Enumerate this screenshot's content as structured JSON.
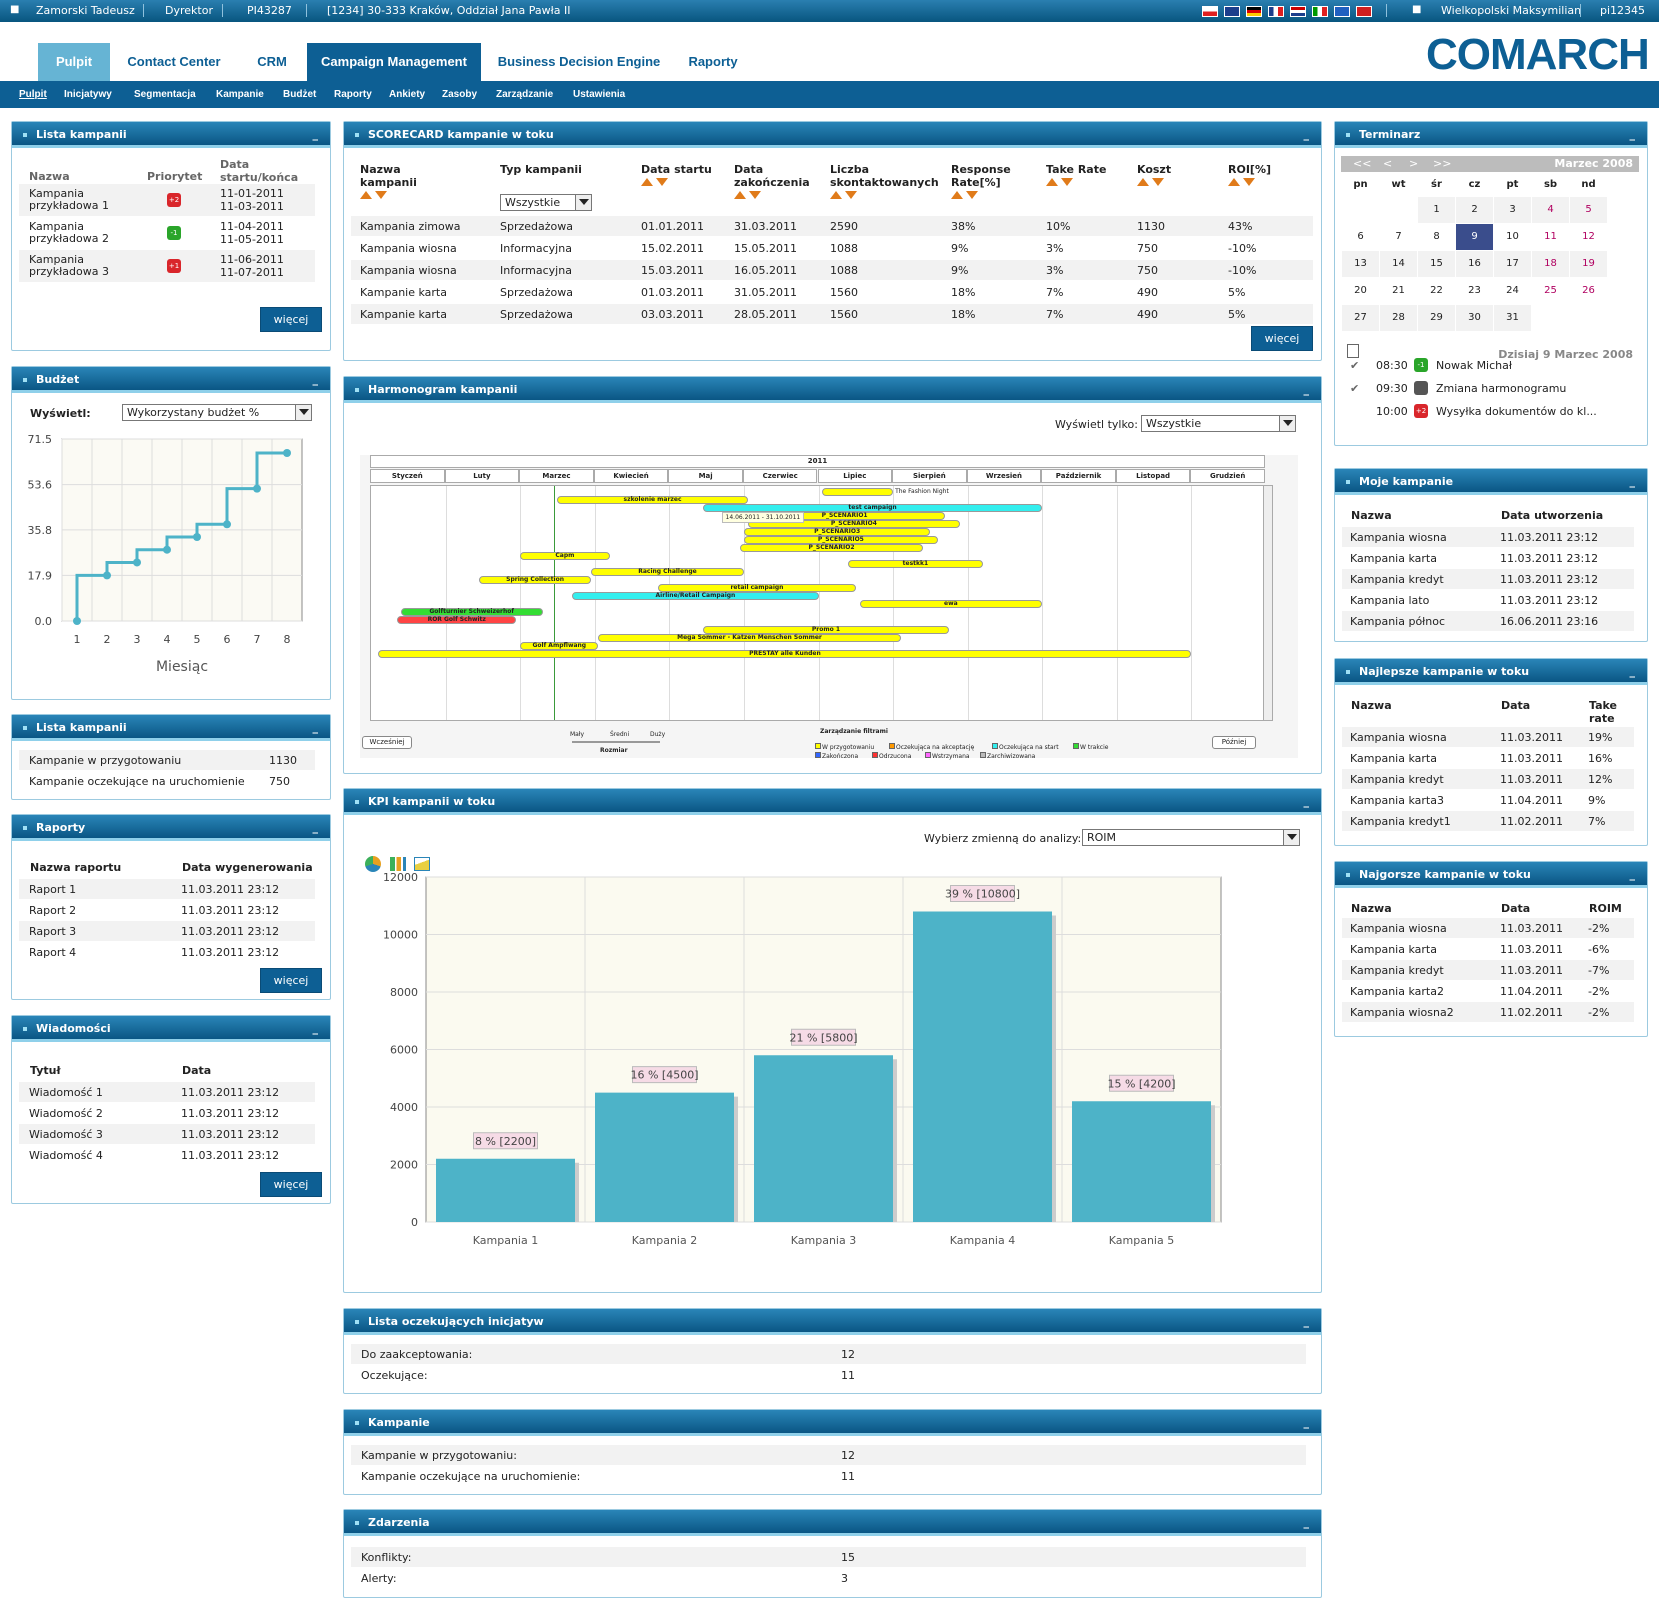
{
  "topbar": {
    "user": "Zamorski Tadeusz",
    "role": "Dyrektor",
    "code": "PI43287",
    "branch": "[1234] 30-333 Kraków, Oddział Jana Pawła II",
    "user2": "Wielkopolski Maksymilian",
    "login": "pi12345"
  },
  "main_tabs": [
    "Pulpit",
    "Contact Center",
    "CRM",
    "Campaign Management",
    "Business Decision Engine",
    "Raporty"
  ],
  "logo": "COMARCH",
  "sub_tabs": [
    "Pulpit",
    "Inicjatywy",
    "Segmentacja",
    "Kampanie",
    "Budżet",
    "Raporty",
    "Ankiety",
    "Zasoby",
    "Zarządzanie",
    "Ustawienia"
  ],
  "lista_kampanii": {
    "title": "Lista kampanii",
    "h_name": "Nazwa",
    "h_prio": "Priorytet",
    "h_date": "Data startu/końca",
    "rows": [
      {
        "name": "Kampania przykładowa 1",
        "prio": "+2",
        "start": "11-01-2011",
        "end": "11-03-2011",
        "color": "#d9262b"
      },
      {
        "name": "Kampania przykładowa 2",
        "prio": "-1",
        "start": "11-04-2011",
        "end": "11-05-2011",
        "color": "#2aa52a"
      },
      {
        "name": "Kampania przykładowa 3",
        "prio": "+1",
        "start": "11-06-2011",
        "end": "11-07-2011",
        "color": "#d9262b"
      }
    ],
    "more": "więcej"
  },
  "budzet": {
    "title": "Budżet",
    "label": "Wyświetl:",
    "select": "Wykorzystany budżet %",
    "xlabel": "Miesiąc"
  },
  "chart_data": [
    {
      "type": "line",
      "title": "",
      "xlabel": "Miesiąc",
      "ylabel": "",
      "x": [
        1,
        2,
        3,
        4,
        5,
        6,
        7,
        8
      ],
      "values": [
        0.0,
        17.9,
        23.0,
        28.0,
        33.0,
        38.0,
        52.0,
        66.0
      ],
      "yticks": [
        "0.0",
        "17.9",
        "35.8",
        "53.6",
        "71.5"
      ],
      "ylim": [
        0,
        71.5
      ],
      "grid": true
    },
    {
      "type": "bar",
      "title": "",
      "categories": [
        "Kampania 1",
        "Kampania 2",
        "Kampania 3",
        "Kampania 4",
        "Kampania 5"
      ],
      "values": [
        2200,
        4500,
        5800,
        10800,
        4200
      ],
      "labels": [
        "8 % [2200]",
        "16 % [4500]",
        "21 % [5800]",
        "39 % [10800]",
        "15 % [4200]"
      ],
      "yticks": [
        "0",
        "2000",
        "4000",
        "6000",
        "8000",
        "10000",
        "12000"
      ],
      "ylim": [
        0,
        12000
      ],
      "grid": true
    }
  ],
  "lista_kampanii2": {
    "title": "Lista kampanii",
    "rows": [
      {
        "k": "Kampanie w przygotowaniu",
        "v": "1130"
      },
      {
        "k": "Kampanie oczekujące na uruchomienie",
        "v": "750"
      }
    ]
  },
  "raporty": {
    "title": "Raporty",
    "h1": "Nazwa raportu",
    "h2": "Data wygenerowania",
    "rows": [
      {
        "a": "Raport 1",
        "b": "11.03.2011 23:12"
      },
      {
        "a": "Raport 2",
        "b": "11.03.2011 23:12"
      },
      {
        "a": "Raport 3",
        "b": "11.03.2011 23:12"
      },
      {
        "a": "Raport 4",
        "b": "11.03.2011 23:12"
      }
    ],
    "more": "więcej"
  },
  "wiadomosci": {
    "title": "Wiadomości",
    "h1": "Tytuł",
    "h2": "Data",
    "rows": [
      {
        "a": "Wiadomość 1",
        "b": "11.03.2011 23:12"
      },
      {
        "a": "Wiadomość 2",
        "b": "11.03.2011 23:12"
      },
      {
        "a": "Wiadomość 3",
        "b": "11.03.2011 23:12"
      },
      {
        "a": "Wiadomość 4",
        "b": "11.03.2011 23:12"
      }
    ],
    "more": "więcej"
  },
  "scorecard": {
    "title": "SCORECARD kampanie w toku",
    "headers": [
      "Nazwa kampanii",
      "Typ kampanii",
      "Data startu",
      "Data zakończenia",
      "Liczba skontaktowanych",
      "Response Rate[%]",
      "Take Rate",
      "Koszt",
      "ROI[%]"
    ],
    "filter": "Wszystkie",
    "rows": [
      [
        "Kampania zimowa",
        "Sprzedażowa",
        "01.01.2011",
        "31.03.2011",
        "2590",
        "38%",
        "10%",
        "1130",
        "43%"
      ],
      [
        "Kampania wiosna",
        "Informacyjna",
        "15.02.2011",
        "15.05.2011",
        "1088",
        "9%",
        "3%",
        "750",
        "-10%"
      ],
      [
        "Kampania wiosna",
        "Informacyjna",
        "15.03.2011",
        "16.05.2011",
        "1088",
        "9%",
        "3%",
        "750",
        "-10%"
      ],
      [
        "Kampanie karta",
        "Sprzedażowa",
        "01.03.2011",
        "31.05.2011",
        "1560",
        "18%",
        "7%",
        "490",
        "5%"
      ],
      [
        "Kampanie karta",
        "Sprzedażowa",
        "03.03.2011",
        "28.05.2011",
        "1560",
        "18%",
        "7%",
        "490",
        "5%"
      ]
    ],
    "more": "więcej"
  },
  "harmonogram": {
    "title": "Harmonogram kampanii",
    "filter_label": "Wyświetl tylko:",
    "filter": "Wszystkie",
    "year": "2011",
    "months": [
      "Styczeń",
      "Luty",
      "Marzec",
      "Kwiecień",
      "Maj",
      "Czerwiec",
      "Lipiec",
      "Sierpień",
      "Wrzesień",
      "Październik",
      "Listopad",
      "Grudzień"
    ],
    "bars": [
      {
        "l": "The Fashion Night",
        "s": 7.05,
        "e": 8.0,
        "c": "#ffff00",
        "lo": true
      },
      {
        "l": "szkolenie marzec",
        "s": 3.5,
        "e": 6.05,
        "c": "#ffff00"
      },
      {
        "l": "test campaign",
        "s": 5.45,
        "e": 10.0,
        "c": "#33eeee"
      },
      {
        "l": "P_SCENARIO1",
        "s": 6.0,
        "e": 8.7,
        "c": "#ffff00"
      },
      {
        "l": "P_SCENARIO4",
        "s": 6.05,
        "e": 8.9,
        "c": "#ffff00"
      },
      {
        "l": "P_SCENARIO3",
        "s": 6.0,
        "e": 8.5,
        "c": "#ffff00"
      },
      {
        "l": "P_SCENARIO5",
        "s": 6.0,
        "e": 8.6,
        "c": "#ffff00"
      },
      {
        "l": "P_SCENARIO2",
        "s": 5.95,
        "e": 8.4,
        "c": "#ffff00"
      },
      {
        "l": "Capm",
        "s": 3.0,
        "e": 4.2,
        "c": "#ffff00"
      },
      {
        "l": "testkk1",
        "s": 7.4,
        "e": 9.2,
        "c": "#ffff00"
      },
      {
        "l": "Racing Challenge",
        "s": 3.95,
        "e": 6.0,
        "c": "#ffff00"
      },
      {
        "l": "Spring Collection",
        "s": 2.45,
        "e": 3.95,
        "c": "#ffff00"
      },
      {
        "l": "retail campaign",
        "s": 4.85,
        "e": 7.5,
        "c": "#ffff00"
      },
      {
        "l": "Airline/Retail Campaign",
        "s": 3.7,
        "e": 7.0,
        "c": "#33eeee"
      },
      {
        "l": "ewa",
        "s": 7.55,
        "e": 10.0,
        "c": "#ffff00"
      },
      {
        "l": "Golfturnier Schweizerhof",
        "s": 1.4,
        "e": 3.3,
        "c": "#33dd33"
      },
      {
        "l": "ROR Golf Schwitz",
        "s": 1.35,
        "e": 2.95,
        "c": "#ff4444"
      },
      {
        "l": "Promo 1",
        "s": 5.45,
        "e": 8.75,
        "c": "#ffff00"
      },
      {
        "l": "Mega Sommer - Katzen Menschen Sommer",
        "s": 4.05,
        "e": 8.1,
        "c": "#ffff00"
      },
      {
        "l": "Golf Ampflwang",
        "s": 3.0,
        "e": 4.05,
        "c": "#ffff00"
      },
      {
        "l": "PRESTAY alle Kunden",
        "s": 1.1,
        "e": 12.0,
        "c": "#ffff00"
      }
    ],
    "tooltip": "14.06.2011 - 31.10.2011",
    "prev": "Wcześniej",
    "next": "Później",
    "size_labels": [
      "Mały",
      "Średni",
      "Duży"
    ],
    "size_title": "Rozmiar",
    "filter_title": "Zarządzanie filtrami",
    "legend": [
      {
        "l": "W przygotowaniu",
        "c": "#ffff00"
      },
      {
        "l": "Oczekująca na akceptację",
        "c": "#ff9900"
      },
      {
        "l": "Oczekująca na start",
        "c": "#33eeee"
      },
      {
        "l": "W trakcie",
        "c": "#33dd33"
      },
      {
        "l": "Zakończona",
        "c": "#3366ff"
      },
      {
        "l": "Odrzucona",
        "c": "#ff3333"
      },
      {
        "l": "Wstrzymana",
        "c": "#ff66ff"
      },
      {
        "l": "Zarchiwizowana",
        "c": "#bbbbbb"
      }
    ]
  },
  "kpi": {
    "title": "KPI kampanii w toku",
    "label": "Wybierz zmienną do analizy:",
    "select": "ROIM"
  },
  "oczekujace": {
    "title": "Lista oczekujących inicjatyw",
    "rows": [
      {
        "k": "Do zaakceptowania:",
        "v": "12"
      },
      {
        "k": "Oczekujące:",
        "v": "11"
      }
    ]
  },
  "kampanie": {
    "title": "Kampanie",
    "rows": [
      {
        "k": "Kampanie w przygotowaniu:",
        "v": "12"
      },
      {
        "k": "Kampanie oczekujące na uruchomienie:",
        "v": "11"
      }
    ]
  },
  "zdarzenia": {
    "title": "Zdarzenia",
    "rows": [
      {
        "k": "Konflikty:",
        "v": "15"
      },
      {
        "k": "Alerty:",
        "v": "3"
      }
    ]
  },
  "terminarz": {
    "title": "Terminarz",
    "month": "Marzec 2008",
    "nav": [
      "<<",
      "<",
      ">",
      ">>"
    ],
    "days": [
      "pn",
      "wt",
      "śr",
      "cz",
      "pt",
      "sb",
      "nd"
    ],
    "weeks": [
      [
        "",
        "",
        "1",
        "2",
        "3",
        "4",
        "5"
      ],
      [
        "6",
        "7",
        "8",
        "9",
        "10",
        "11",
        "12"
      ],
      [
        "13",
        "14",
        "15",
        "16",
        "17",
        "18",
        "19"
      ],
      [
        "20",
        "21",
        "22",
        "23",
        "24",
        "25",
        "26"
      ],
      [
        "27",
        "28",
        "29",
        "30",
        "31",
        "",
        ""
      ]
    ],
    "today": "Dzisiaj 9 Marzec 2008",
    "events": [
      {
        "t": "08:30",
        "b": "-1",
        "bc": "#2aa52a",
        "n": "Nowak Michał"
      },
      {
        "t": "09:30",
        "b": "",
        "bc": "#555555",
        "n": "Zmiana harmonogramu"
      },
      {
        "t": "10:00",
        "b": "+2",
        "bc": "#d9262b",
        "n": "Wysyłka dokumentów do kl..."
      }
    ]
  },
  "moje": {
    "title": "Moje kampanie",
    "h1": "Nazwa",
    "h2": "Data utworzenia",
    "rows": [
      {
        "a": "Kampania wiosna",
        "b": "11.03.2011 23:12"
      },
      {
        "a": "Kampania karta",
        "b": "11.03.2011 23:12"
      },
      {
        "a": "Kampania kredyt",
        "b": "11.03.2011 23:12"
      },
      {
        "a": "Kampania lato",
        "b": "11.03.2011 23:12"
      },
      {
        "a": "Kampania północ",
        "b": "16.06.2011 23:16"
      }
    ]
  },
  "najlepsze": {
    "title": "Najlepsze kampanie w toku",
    "h1": "Nazwa",
    "h2": "Data",
    "h3": "Take rate",
    "rows": [
      {
        "a": "Kampania wiosna",
        "b": "11.03.2011",
        "c": "19%"
      },
      {
        "a": "Kampania karta",
        "b": "11.03.2011",
        "c": "16%"
      },
      {
        "a": "Kampania kredyt",
        "b": "11.03.2011",
        "c": "12%"
      },
      {
        "a": "Kampania karta3",
        "b": "11.04.2011",
        "c": "9%"
      },
      {
        "a": "Kampania kredyt1",
        "b": "11.02.2011",
        "c": "7%"
      }
    ]
  },
  "najgorsze": {
    "title": "Najgorsze kampanie w toku",
    "h1": "Nazwa",
    "h2": "Data",
    "h3": "ROIM",
    "rows": [
      {
        "a": "Kampania wiosna",
        "b": "11.03.2011",
        "c": "-2%"
      },
      {
        "a": "Kampania karta",
        "b": "11.03.2011",
        "c": "-6%"
      },
      {
        "a": "Kampania kredyt",
        "b": "11.03.2011",
        "c": "-7%"
      },
      {
        "a": "Kampania karta2",
        "b": "11.04.2011",
        "c": "-2%"
      },
      {
        "a": "Kampania wiosna2",
        "b": "11.02.2011",
        "c": "-2%"
      }
    ]
  }
}
